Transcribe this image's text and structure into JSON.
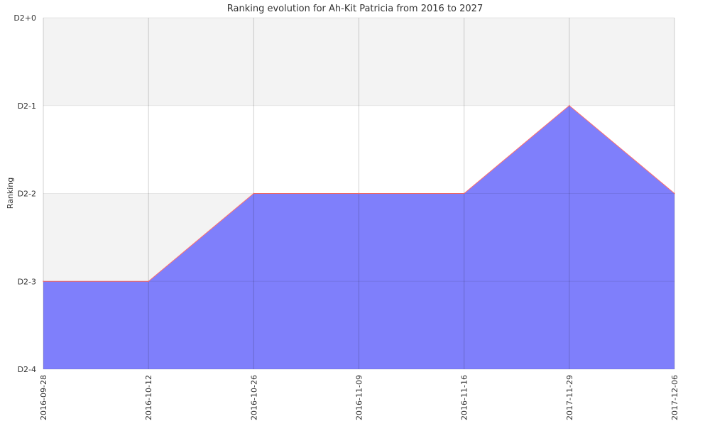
{
  "chart_data": {
    "type": "area",
    "title": "Ranking evolution for Ah-Kit Patricia from 2016 to 2027",
    "ylabel": "Ranking",
    "xlabel": "",
    "x": [
      "2016-09-28",
      "2016-10-12",
      "2016-10-26",
      "2016-11-09",
      "2016-11-16",
      "2017-11-29",
      "2017-12-06"
    ],
    "y_tick_labels": [
      "D2+0",
      "D2-1",
      "D2-2",
      "D2-3",
      "D2-4"
    ],
    "series": [
      {
        "values": [
          1,
          1,
          2,
          2,
          2,
          3,
          2
        ]
      }
    ],
    "ylim": [
      0,
      4
    ],
    "grid": true,
    "fill_color": "#7f7ffb",
    "line_color": "#ff6f6f",
    "band_color": "#f3f3f3",
    "grid_color": "#cccccc"
  }
}
